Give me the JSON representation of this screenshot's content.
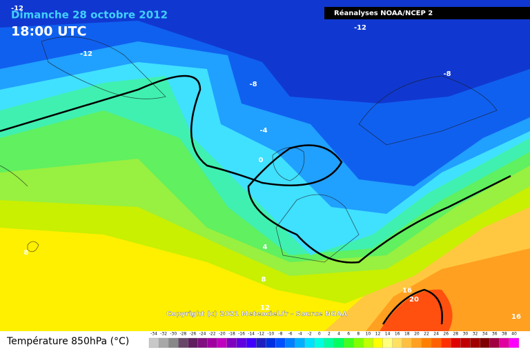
{
  "header": {
    "date": "Dimanche 28 octobre 2012",
    "time": "18:00 UTC",
    "source": "Réanalyses NOAA/NCEP 2"
  },
  "contour_labels": [
    -12,
    -12,
    -12,
    -8,
    -8,
    -4,
    0,
    4,
    8,
    8,
    12,
    16,
    20,
    16
  ],
  "copyright": "Copyright (c) 2021 Meteociel.fr - Source NOAA",
  "legend": {
    "title": "Température 850hPa (°C)",
    "ticks": [
      -34,
      -32,
      -30,
      -28,
      -26,
      -24,
      -22,
      -20,
      -18,
      -16,
      -14,
      -12,
      -10,
      -8,
      -6,
      -4,
      -2,
      0,
      2,
      4,
      6,
      8,
      10,
      12,
      14,
      16,
      18,
      20,
      22,
      24,
      26,
      28,
      30,
      32,
      34,
      36,
      38,
      40
    ],
    "colors": [
      "#c8c8c8",
      "#a8a8a8",
      "#888888",
      "#684868",
      "#602060",
      "#801080",
      "#a000a0",
      "#c000c0",
      "#8000c0",
      "#6000e0",
      "#4000ff",
      "#2020c0",
      "#0030e0",
      "#0050ff",
      "#0080ff",
      "#00b0ff",
      "#00e0ff",
      "#00ffe0",
      "#00ffa0",
      "#00ff60",
      "#40ff20",
      "#80ff00",
      "#c0ff00",
      "#ffff00",
      "#ffff80",
      "#ffe060",
      "#ffc040",
      "#ffa020",
      "#ff8000",
      "#ff6000",
      "#ff3000",
      "#e00000",
      "#c00000",
      "#a00000",
      "#800000",
      "#a00040",
      "#e000a0",
      "#ff00ff"
    ]
  }
}
